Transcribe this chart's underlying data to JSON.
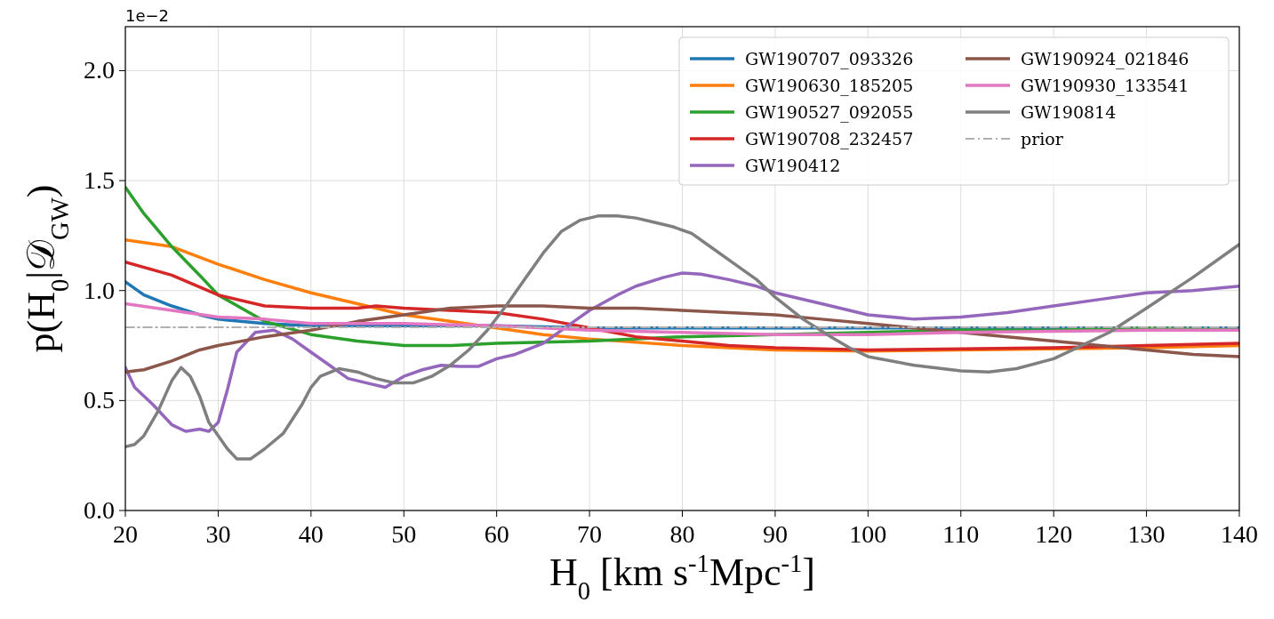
{
  "chart_data": {
    "type": "line",
    "xlabel": "H$_{0}$ [km s$^{-1}$Mpc$^{-1}$]",
    "ylabel": "p(H$_{0}$|𝒟$_{GW}$)",
    "annotations": [
      "1e−2"
    ],
    "xlim": [
      20,
      140
    ],
    "xticks": [
      20,
      30,
      40,
      50,
      60,
      70,
      80,
      90,
      100,
      110,
      120,
      130,
      140
    ],
    "ylim": [
      0,
      2.2
    ],
    "yticks": [
      {
        "value": 0,
        "label": "0.0"
      },
      0.5,
      {
        "value": 1,
        "label": "1.0"
      },
      {
        "value": 1.5,
        "label": "1.5"
      },
      {
        "value": 2,
        "label": "2.0"
      }
    ],
    "grid": true,
    "legend": "top right",
    "line_style": "solid",
    "series": [
      {
        "name": "GW190707_093326",
        "color": "#1f77b4",
        "x": [
          20,
          22,
          25,
          28,
          30,
          35,
          40,
          50,
          60,
          70,
          80,
          90,
          100,
          110,
          120,
          130,
          140
        ],
        "values": [
          1.04,
          0.98,
          0.93,
          0.89,
          0.87,
          0.85,
          0.84,
          0.84,
          0.84,
          0.83,
          0.83,
          0.83,
          0.83,
          0.83,
          0.83,
          0.83,
          0.83
        ]
      },
      {
        "name": "GW190630_185205",
        "color": "#ff7f0e",
        "x": [
          20,
          25,
          30,
          35,
          40,
          45,
          50,
          55,
          60,
          65,
          70,
          80,
          90,
          100,
          110,
          120,
          130,
          140
        ],
        "values": [
          1.23,
          1.2,
          1.12,
          1.05,
          0.99,
          0.94,
          0.89,
          0.86,
          0.83,
          0.8,
          0.78,
          0.75,
          0.73,
          0.725,
          0.73,
          0.735,
          0.74,
          0.75
        ]
      },
      {
        "name": "GW190527_092055",
        "color": "#2ca02c",
        "x": [
          20,
          22,
          25,
          28,
          30,
          35,
          40,
          45,
          50,
          55,
          60,
          70,
          80,
          90,
          100,
          110,
          120,
          130,
          140
        ],
        "values": [
          1.47,
          1.35,
          1.2,
          1.07,
          0.98,
          0.86,
          0.8,
          0.77,
          0.75,
          0.75,
          0.76,
          0.77,
          0.79,
          0.8,
          0.81,
          0.82,
          0.82,
          0.83,
          0.82
        ]
      },
      {
        "name": "GW190708_232457",
        "color": "#d62728",
        "x": [
          20,
          25,
          30,
          35,
          40,
          45,
          47,
          50,
          55,
          60,
          65,
          70,
          75,
          80,
          85,
          90,
          100,
          110,
          120,
          130,
          140
        ],
        "values": [
          1.13,
          1.07,
          0.98,
          0.93,
          0.92,
          0.92,
          0.93,
          0.92,
          0.91,
          0.9,
          0.87,
          0.83,
          0.79,
          0.77,
          0.75,
          0.74,
          0.73,
          0.735,
          0.74,
          0.75,
          0.76
        ]
      },
      {
        "name": "GW190412",
        "color": "#9467bd",
        "x": [
          20,
          21,
          23,
          25,
          26.5,
          28,
          29,
          30,
          31,
          32,
          34,
          36,
          38,
          40,
          42,
          44,
          46,
          48,
          50,
          52,
          54,
          56,
          58,
          60,
          62,
          65,
          68,
          70,
          73,
          75,
          78,
          80,
          82,
          85,
          88,
          90,
          95,
          100,
          105,
          110,
          115,
          120,
          125,
          130,
          135,
          140
        ],
        "values": [
          0.65,
          0.56,
          0.48,
          0.39,
          0.36,
          0.37,
          0.36,
          0.4,
          0.55,
          0.72,
          0.81,
          0.82,
          0.78,
          0.72,
          0.66,
          0.6,
          0.58,
          0.56,
          0.61,
          0.64,
          0.66,
          0.655,
          0.655,
          0.69,
          0.71,
          0.76,
          0.85,
          0.91,
          0.98,
          1.02,
          1.06,
          1.08,
          1.075,
          1.05,
          1.02,
          0.99,
          0.94,
          0.89,
          0.87,
          0.88,
          0.9,
          0.93,
          0.96,
          0.99,
          1.0,
          1.02
        ]
      },
      {
        "name": "GW190924_021846",
        "color": "#8c564b",
        "x": [
          20,
          22,
          25,
          28,
          30,
          35,
          40,
          45,
          50,
          55,
          60,
          65,
          70,
          75,
          80,
          85,
          90,
          95,
          100,
          105,
          110,
          115,
          120,
          125,
          130,
          135,
          140
        ],
        "values": [
          0.63,
          0.64,
          0.68,
          0.73,
          0.75,
          0.79,
          0.82,
          0.86,
          0.89,
          0.92,
          0.93,
          0.93,
          0.92,
          0.92,
          0.91,
          0.9,
          0.89,
          0.87,
          0.85,
          0.83,
          0.81,
          0.79,
          0.77,
          0.75,
          0.73,
          0.71,
          0.7
        ]
      },
      {
        "name": "GW190930_133541",
        "color": "#e377c2",
        "x": [
          20,
          25,
          30,
          35,
          40,
          50,
          60,
          70,
          80,
          90,
          100,
          110,
          120,
          130,
          140
        ],
        "values": [
          0.94,
          0.91,
          0.88,
          0.87,
          0.85,
          0.85,
          0.84,
          0.82,
          0.81,
          0.8,
          0.8,
          0.81,
          0.815,
          0.82,
          0.82
        ]
      },
      {
        "name": "GW190814",
        "color": "#7f7f7f",
        "x": [
          20,
          21,
          22,
          23.5,
          25,
          26,
          27,
          28,
          29,
          31,
          32,
          33.5,
          35,
          37,
          39,
          40,
          41,
          43,
          45,
          47,
          49,
          51,
          53,
          55,
          57,
          59,
          61,
          63,
          65,
          67,
          69,
          71,
          73,
          75,
          77,
          79,
          81,
          83,
          85,
          88,
          90,
          93,
          96,
          98,
          100,
          105,
          110,
          113,
          116,
          120,
          123,
          126,
          130,
          135,
          140
        ],
        "values": [
          0.29,
          0.3,
          0.34,
          0.45,
          0.59,
          0.65,
          0.61,
          0.52,
          0.4,
          0.28,
          0.235,
          0.235,
          0.28,
          0.35,
          0.48,
          0.56,
          0.61,
          0.645,
          0.63,
          0.6,
          0.58,
          0.58,
          0.61,
          0.66,
          0.73,
          0.82,
          0.93,
          1.05,
          1.17,
          1.27,
          1.32,
          1.34,
          1.34,
          1.33,
          1.31,
          1.29,
          1.26,
          1.2,
          1.14,
          1.05,
          0.97,
          0.87,
          0.79,
          0.74,
          0.7,
          0.66,
          0.635,
          0.63,
          0.645,
          0.69,
          0.75,
          0.81,
          0.92,
          1.06,
          1.21
        ]
      },
      {
        "name": "prior",
        "color": "#b0b0b0",
        "line_style": "dashed",
        "x": [
          20,
          140
        ],
        "values": [
          0.833,
          0.833
        ]
      }
    ]
  }
}
